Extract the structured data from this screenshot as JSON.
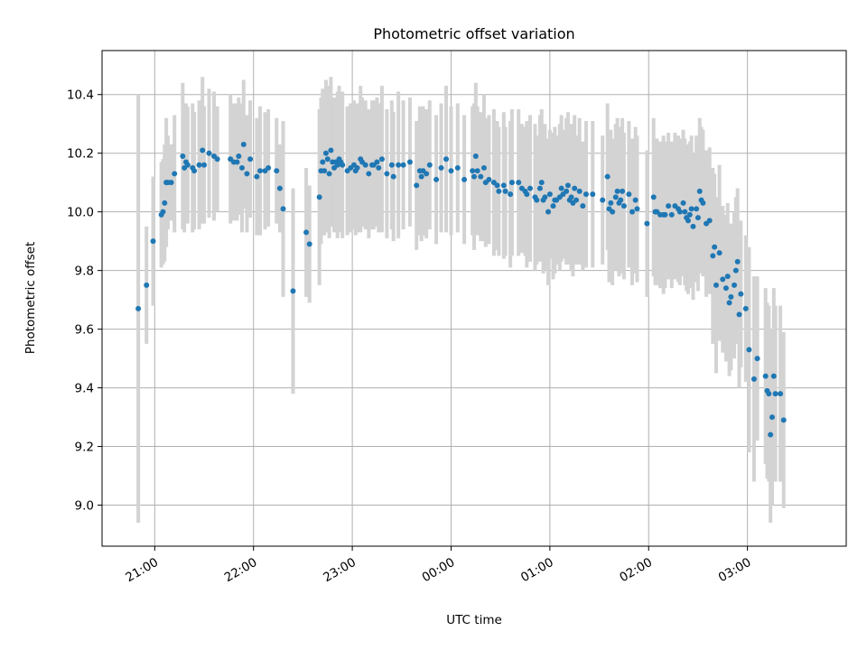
{
  "chart_data": {
    "type": "scatter",
    "title": "Photometric offset variation",
    "xlabel": "UTC time",
    "ylabel": "Photometric offset",
    "xlim": [
      "20:28",
      "04:00"
    ],
    "ylim": [
      8.86,
      10.55
    ],
    "grid": true,
    "x_ticks": [
      "21:00",
      "22:00",
      "23:00",
      "00:00",
      "01:00",
      "02:00",
      "03:00"
    ],
    "y_ticks": [
      "9.0",
      "9.2",
      "9.4",
      "9.6",
      "9.8",
      "10.0",
      "10.2",
      "10.4"
    ],
    "error_bars": true,
    "colors": {
      "points": "#1f77b4",
      "error_bars": "#d3d3d3",
      "grid": "#b0b0b0"
    },
    "series": [
      {
        "x": [
          "20:50",
          "20:55",
          "20:59",
          "21:04",
          "21:05",
          "21:06",
          "21:07",
          "21:08",
          "21:10",
          "21:12",
          "21:17",
          "21:18",
          "21:19",
          "21:20",
          "21:23",
          "21:24",
          "21:27",
          "21:29",
          "21:30",
          "21:33",
          "21:36",
          "21:38",
          "21:46",
          "21:48",
          "21:50",
          "21:51",
          "21:53",
          "21:54",
          "21:56",
          "21:58",
          "22:02",
          "22:04",
          "22:07",
          "22:09",
          "22:14",
          "22:16",
          "22:18",
          "22:24",
          "22:32",
          "22:34",
          "22:40",
          "22:41",
          "22:42",
          "22:43",
          "22:44",
          "22:45",
          "22:46",
          "22:47",
          "22:48",
          "22:49",
          "22:50",
          "22:51",
          "22:52",
          "22:53",
          "22:54",
          "22:57",
          "22:59",
          "23:01",
          "23:02",
          "23:03",
          "23:05",
          "23:06",
          "23:08",
          "23:10",
          "23:12",
          "23:13",
          "23:15",
          "23:16",
          "23:18",
          "23:21",
          "23:24",
          "23:25",
          "23:28",
          "23:31",
          "23:35",
          "23:39",
          "23:41",
          "23:42",
          "23:43",
          "23:45",
          "23:47",
          "23:51",
          "23:54",
          "23:57",
          "00:00",
          "00:04",
          "00:08",
          "00:13",
          "00:14",
          "00:15",
          "00:16",
          "00:18",
          "00:20",
          "00:21",
          "00:23",
          "00:26",
          "00:28",
          "00:29",
          "00:32",
          "00:33",
          "00:36",
          "00:37",
          "00:41",
          "00:43",
          "00:45",
          "00:46",
          "00:48",
          "00:51",
          "00:52",
          "00:54",
          "00:55",
          "00:56",
          "00:57",
          "00:59",
          "01:00",
          "01:02",
          "01:03",
          "01:04",
          "01:06",
          "01:07",
          "01:08",
          "01:10",
          "01:11",
          "01:12",
          "01:13",
          "01:14",
          "01:15",
          "01:16",
          "01:18",
          "01:20",
          "01:22",
          "01:26",
          "01:32",
          "01:35",
          "01:36",
          "01:37",
          "01:38",
          "01:40",
          "01:41",
          "01:42",
          "01:43",
          "01:44",
          "01:45",
          "01:48",
          "01:50",
          "01:52",
          "01:53",
          "01:59",
          "02:03",
          "02:04",
          "02:05",
          "02:07",
          "02:09",
          "02:10",
          "02:12",
          "02:14",
          "02:16",
          "02:18",
          "02:19",
          "02:21",
          "02:22",
          "02:23",
          "02:24",
          "02:25",
          "02:26",
          "02:27",
          "02:29",
          "02:30",
          "02:31",
          "02:32",
          "02:33",
          "02:35",
          "02:37",
          "02:39",
          "02:40",
          "02:41",
          "02:43",
          "02:45",
          "02:47",
          "02:48",
          "02:49",
          "02:50",
          "02:52",
          "02:53",
          "02:54",
          "02:55",
          "02:56",
          "02:59",
          "03:01",
          "03:04",
          "03:06",
          "03:11",
          "03:12",
          "03:13",
          "03:14",
          "03:15",
          "03:16",
          "03:17",
          "03:20",
          "03:22"
        ],
        "y": [
          9.67,
          9.75,
          9.9,
          9.99,
          10.0,
          10.03,
          10.1,
          10.1,
          10.1,
          10.13,
          10.19,
          10.15,
          10.17,
          10.16,
          10.15,
          10.14,
          10.16,
          10.21,
          10.16,
          10.2,
          10.19,
          10.18,
          10.18,
          10.17,
          10.17,
          10.19,
          10.15,
          10.23,
          10.13,
          10.18,
          10.12,
          10.14,
          10.14,
          10.15,
          10.14,
          10.08,
          10.01,
          9.73,
          9.93,
          9.89,
          10.05,
          10.14,
          10.17,
          10.14,
          10.2,
          10.18,
          10.13,
          10.21,
          10.17,
          10.15,
          10.17,
          10.16,
          10.18,
          10.17,
          10.16,
          10.14,
          10.15,
          10.16,
          10.14,
          10.15,
          10.18,
          10.17,
          10.16,
          10.13,
          10.16,
          10.16,
          10.17,
          10.15,
          10.18,
          10.13,
          10.16,
          10.12,
          10.16,
          10.16,
          10.17,
          10.09,
          10.14,
          10.12,
          10.14,
          10.13,
          10.16,
          10.11,
          10.15,
          10.18,
          10.14,
          10.15,
          10.11,
          10.14,
          10.12,
          10.19,
          10.14,
          10.12,
          10.15,
          10.1,
          10.11,
          10.1,
          10.09,
          10.07,
          10.09,
          10.07,
          10.06,
          10.1,
          10.1,
          10.08,
          10.07,
          10.06,
          10.08,
          10.05,
          10.04,
          10.08,
          10.1,
          10.04,
          10.05,
          10.0,
          10.06,
          10.02,
          10.04,
          10.04,
          10.05,
          10.08,
          10.06,
          10.07,
          10.09,
          10.04,
          10.05,
          10.03,
          10.08,
          10.04,
          10.07,
          10.02,
          10.06,
          10.06,
          10.04,
          10.12,
          10.01,
          10.03,
          10.0,
          10.05,
          10.07,
          10.03,
          10.04,
          10.07,
          10.02,
          10.06,
          10.0,
          10.04,
          10.01,
          9.96,
          10.05,
          10.0,
          10.0,
          9.99,
          9.99,
          9.99,
          10.02,
          9.99,
          10.02,
          10.01,
          10.0,
          10.03,
          10.0,
          9.98,
          9.97,
          9.99,
          10.01,
          9.95,
          10.01,
          9.98,
          10.07,
          10.04,
          10.03,
          9.96,
          9.97,
          9.85,
          9.88,
          9.75,
          9.86,
          9.77,
          9.74,
          9.78,
          9.69,
          9.71,
          9.75,
          9.8,
          9.83,
          9.65,
          9.72,
          9.67,
          9.53,
          9.43,
          9.5,
          9.44,
          9.39,
          9.38,
          9.24,
          9.3,
          9.44,
          9.38,
          9.38,
          9.29
        ],
        "err": [
          0.73,
          0.2,
          0.22,
          0.18,
          0.18,
          0.2,
          0.22,
          0.16,
          0.13,
          0.2,
          0.25,
          0.22,
          0.2,
          0.2,
          0.22,
          0.2,
          0.22,
          0.25,
          0.2,
          0.22,
          0.22,
          0.18,
          0.22,
          0.2,
          0.2,
          0.2,
          0.22,
          0.22,
          0.2,
          0.2,
          0.2,
          0.22,
          0.2,
          0.2,
          0.18,
          0.15,
          0.3,
          0.35,
          0.22,
          0.2,
          0.3,
          0.25,
          0.25,
          0.22,
          0.25,
          0.25,
          0.22,
          0.25,
          0.22,
          0.22,
          0.22,
          0.25,
          0.25,
          0.22,
          0.25,
          0.22,
          0.22,
          0.22,
          0.22,
          0.22,
          0.25,
          0.22,
          0.22,
          0.22,
          0.22,
          0.22,
          0.22,
          0.22,
          0.25,
          0.22,
          0.22,
          0.22,
          0.25,
          0.22,
          0.22,
          0.22,
          0.22,
          0.22,
          0.22,
          0.22,
          0.22,
          0.22,
          0.22,
          0.25,
          0.22,
          0.22,
          0.22,
          0.22,
          0.25,
          0.25,
          0.22,
          0.22,
          0.25,
          0.22,
          0.22,
          0.25,
          0.22,
          0.22,
          0.25,
          0.22,
          0.25,
          0.25,
          0.25,
          0.22,
          0.22,
          0.25,
          0.25,
          0.25,
          0.22,
          0.25,
          0.25,
          0.25,
          0.25,
          0.25,
          0.22,
          0.25,
          0.25,
          0.22,
          0.25,
          0.25,
          0.22,
          0.25,
          0.25,
          0.22,
          0.25,
          0.25,
          0.25,
          0.22,
          0.25,
          0.22,
          0.25,
          0.25,
          0.22,
          0.25,
          0.25,
          0.25,
          0.25,
          0.25,
          0.25,
          0.25,
          0.25,
          0.25,
          0.25,
          0.25,
          0.25,
          0.25,
          0.25,
          0.25,
          0.27,
          0.25,
          0.25,
          0.25,
          0.27,
          0.25,
          0.25,
          0.25,
          0.25,
          0.25,
          0.25,
          0.25,
          0.25,
          0.25,
          0.25,
          0.25,
          0.25,
          0.25,
          0.25,
          0.25,
          0.25,
          0.25,
          0.25,
          0.25,
          0.25,
          0.3,
          0.25,
          0.3,
          0.3,
          0.25,
          0.25,
          0.25,
          0.25,
          0.25,
          0.25,
          0.25,
          0.25,
          0.25,
          0.25,
          0.25,
          0.35,
          0.35,
          0.28,
          0.3,
          0.3,
          0.3,
          0.3,
          0.3,
          0.3,
          0.3,
          0.3,
          0.3
        ]
      }
    ]
  }
}
